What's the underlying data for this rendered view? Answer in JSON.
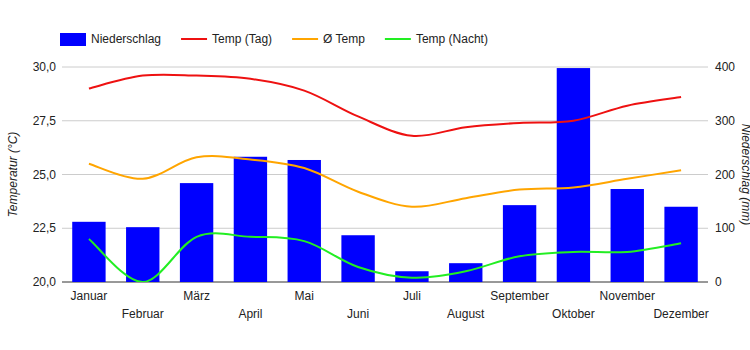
{
  "chart_data": {
    "type": "bar",
    "categories": [
      "Januar",
      "Februar",
      "März",
      "April",
      "Mai",
      "Juni",
      "Juli",
      "August",
      "September",
      "Oktober",
      "November",
      "Dezember"
    ],
    "series": [
      {
        "name": "Niederschlag",
        "type": "bar",
        "axis": "y2",
        "color": "#0000ff",
        "values": [
          112,
          102,
          184,
          233,
          227,
          87,
          20,
          35,
          143,
          398,
          173,
          140
        ]
      },
      {
        "name": "Temp (Tag)",
        "type": "line",
        "color": "#ee1111",
        "values": [
          29.0,
          29.6,
          29.6,
          29.45,
          28.9,
          27.7,
          26.8,
          27.2,
          27.4,
          27.5,
          28.2,
          28.6
        ]
      },
      {
        "name": "Ø Temp",
        "type": "line",
        "color": "#ffa500",
        "values": [
          25.5,
          24.8,
          25.8,
          25.7,
          25.3,
          24.2,
          23.5,
          23.9,
          24.3,
          24.4,
          24.8,
          25.2
        ]
      },
      {
        "name": "Temp (Nacht)",
        "type": "line",
        "color": "#22ee22",
        "values": [
          22.0,
          20.0,
          22.1,
          22.1,
          21.9,
          20.7,
          20.2,
          20.5,
          21.2,
          21.4,
          21.4,
          21.8
        ]
      }
    ],
    "y_label": "Temperatur (°C)",
    "y2_label": "Niederschlag (mm)",
    "ylim": [
      20,
      30
    ],
    "yticks": [
      {
        "value": 20,
        "label": "20,0"
      },
      {
        "value": 22.5,
        "label": "22,5"
      },
      {
        "value": 25,
        "label": "25,0"
      },
      {
        "value": 27.5,
        "label": "27,5"
      },
      {
        "value": 30,
        "label": "30,0"
      }
    ],
    "y2lim": [
      0,
      400
    ],
    "y2ticks": [
      0,
      100,
      200,
      300,
      400
    ],
    "grid": true,
    "legend": "top"
  }
}
